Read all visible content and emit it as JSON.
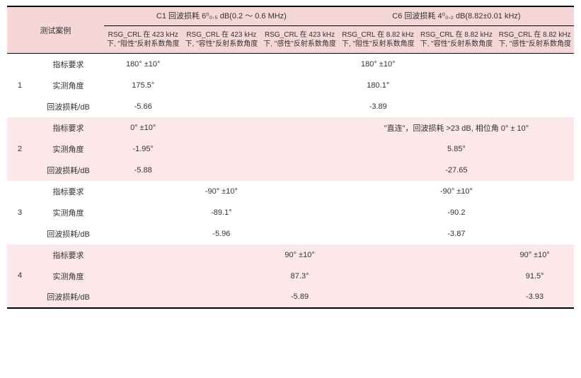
{
  "colors": {
    "header_bg": "#f5d7d7",
    "zebra_bg": "#fce8e8",
    "text": "#333333",
    "rule": "#000000",
    "background": "#ffffff"
  },
  "header": {
    "group_c1": "C1 回波损耗 6⁰₀.₅ dB(0.2 ～ 0.6 MHz)",
    "group_c6": "C6 回波损耗 4⁰₀.₂ dB(8.82±0.01 kHz)",
    "case_label": "测试案例",
    "subcols": [
      "RSG_CRL 在 423 kHz 下, \"阻性\"反射系数角度",
      "RSG_CRL 在 423 kHz 下, \"容性\"反射系数角度",
      "RSG_CRL 在 423 kHz 下, \"感性\"反射系数角度",
      "RSG_CRL 在 8.82 kHz 下, \"阻性\"反射系数角度",
      "RSG_CRL 在 8.82 kHz 下, \"容性\"反射系数角度",
      "RSG_CRL 在 8.82 kHz 下, \"感性\"反射系数角度"
    ]
  },
  "row_labels": {
    "req": "指标要求",
    "meas": "实测角度",
    "loss": "回波损耗/dB"
  },
  "groups": [
    {
      "idx": "1",
      "zebra": false,
      "req": [
        "180°  ±10°",
        "",
        "",
        "180°  ±10°",
        "",
        ""
      ],
      "meas": [
        "175.5°",
        "",
        "",
        "180.1°",
        "",
        ""
      ],
      "loss": [
        "-5.66",
        "",
        "",
        "-3.89",
        "",
        ""
      ]
    },
    {
      "idx": "2",
      "zebra": true,
      "direct_note": "\"直连\"，回波损耗 >23 dB, 相位角 0°  ± 10°",
      "req": [
        "0°  ±10°",
        "",
        ""
      ],
      "meas": [
        "-1.95°",
        "",
        "",
        "",
        "5.85°",
        ""
      ],
      "loss": [
        "-5.88",
        "",
        "",
        "",
        "-27.65",
        ""
      ]
    },
    {
      "idx": "3",
      "zebra": false,
      "req": [
        "",
        "-90°  ±10°",
        "",
        "",
        "-90°  ±10°",
        ""
      ],
      "meas": [
        "",
        "-89.1°",
        "",
        "",
        "-90.2",
        ""
      ],
      "loss": [
        "",
        "-5.96",
        "",
        "",
        "-3.87",
        ""
      ]
    },
    {
      "idx": "4",
      "zebra": true,
      "req": [
        "",
        "",
        "90°  ±10°",
        "",
        "",
        "90°  ±10°"
      ],
      "meas": [
        "",
        "",
        "87.3°",
        "",
        "",
        "91.5°"
      ],
      "loss": [
        "",
        "",
        "-5.89",
        "",
        "",
        "-3.93"
      ]
    }
  ]
}
